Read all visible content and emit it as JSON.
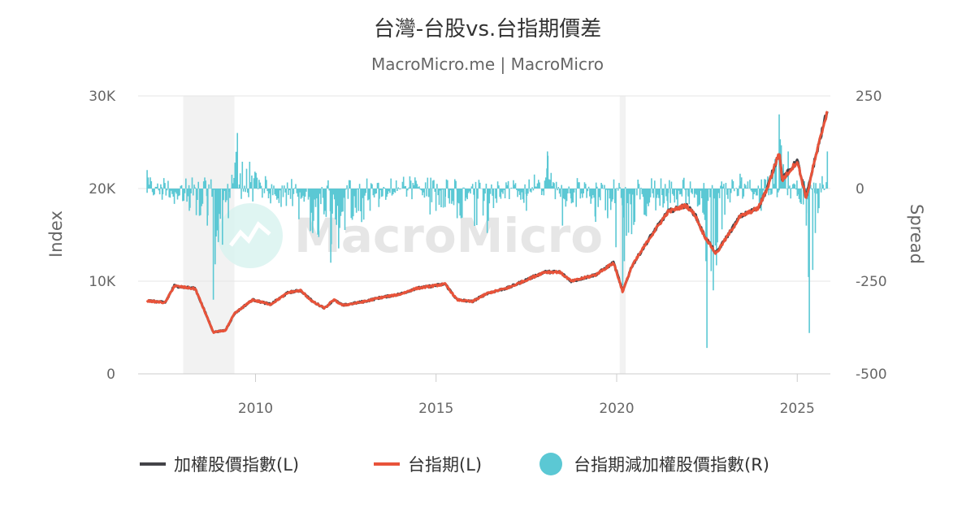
{
  "chart_data": {
    "type": "line",
    "title": "台灣-台股vs.台指期價差",
    "subtitle": "MacroMicro.me | MacroMicro",
    "watermark": "MacroMicro",
    "x_ticks": [
      "2010",
      "2015",
      "2020",
      "2025"
    ],
    "xlim": [
      "2006-10",
      "2025-12"
    ],
    "left_axis": {
      "label": "Index",
      "ticks": [
        "0",
        "10K",
        "20K",
        "30K"
      ],
      "tick_values": [
        0,
        10000,
        20000,
        30000
      ],
      "ylim": [
        0,
        30000
      ]
    },
    "right_axis": {
      "label": "Spread",
      "ticks": [
        "-500",
        "-250",
        "0",
        "250"
      ],
      "tick_values": [
        -500,
        -250,
        0,
        250
      ],
      "ylim": [
        -500,
        250
      ]
    },
    "recession_bands": [
      {
        "start": "2008-01",
        "end": "2009-06"
      },
      {
        "start": "2020-02",
        "end": "2020-04"
      }
    ],
    "grid": true,
    "legend_position": "bottom",
    "series": [
      {
        "name": "加權股價指數(L)",
        "axis": "left",
        "color": "#434348",
        "x": [
          "2007-01",
          "2007-07",
          "2007-10",
          "2008-05",
          "2008-11",
          "2009-03",
          "2009-06",
          "2009-12",
          "2010-06",
          "2010-12",
          "2011-04",
          "2011-08",
          "2011-12",
          "2012-03",
          "2012-06",
          "2013-01",
          "2013-06",
          "2014-01",
          "2014-06",
          "2015-04",
          "2015-08",
          "2016-01",
          "2016-06",
          "2017-01",
          "2017-06",
          "2018-01",
          "2018-06",
          "2018-10",
          "2019-06",
          "2019-12",
          "2020-03",
          "2020-06",
          "2020-12",
          "2021-06",
          "2021-12",
          "2022-03",
          "2022-06",
          "2022-10",
          "2023-06",
          "2023-12",
          "2024-03",
          "2024-07",
          "2024-08",
          "2025-01",
          "2025-04",
          "2025-06",
          "2025-11"
        ],
        "values": [
          7900,
          7700,
          9500,
          9200,
          4500,
          4700,
          6500,
          8000,
          7500,
          8800,
          9000,
          7800,
          7100,
          8000,
          7400,
          7800,
          8200,
          8600,
          9200,
          9700,
          8000,
          7800,
          8700,
          9300,
          10000,
          11000,
          11000,
          10000,
          10700,
          12000,
          8900,
          11600,
          14700,
          17500,
          18200,
          17200,
          15000,
          13000,
          17000,
          17900,
          20000,
          24000,
          21000,
          23000,
          19000,
          22000,
          28500
        ]
      },
      {
        "name": "台指期(L)",
        "axis": "left",
        "color": "#e8533a",
        "x": [
          "2007-01",
          "2007-07",
          "2007-10",
          "2008-05",
          "2008-11",
          "2009-03",
          "2009-06",
          "2009-12",
          "2010-06",
          "2010-12",
          "2011-04",
          "2011-08",
          "2011-12",
          "2012-03",
          "2012-06",
          "2013-01",
          "2013-06",
          "2014-01",
          "2014-06",
          "2015-04",
          "2015-08",
          "2016-01",
          "2016-06",
          "2017-01",
          "2017-06",
          "2018-01",
          "2018-06",
          "2018-10",
          "2019-06",
          "2019-12",
          "2020-03",
          "2020-06",
          "2020-12",
          "2021-06",
          "2021-12",
          "2022-03",
          "2022-06",
          "2022-10",
          "2023-06",
          "2023-12",
          "2024-03",
          "2024-07",
          "2024-08",
          "2025-01",
          "2025-04",
          "2025-06",
          "2025-11"
        ],
        "values": [
          7880,
          7680,
          9480,
          9180,
          4480,
          4680,
          6490,
          7990,
          7490,
          8790,
          8990,
          7780,
          7080,
          7990,
          7390,
          7790,
          8190,
          8590,
          9190,
          9690,
          7990,
          7790,
          8690,
          9290,
          9990,
          10990,
          10990,
          9990,
          10690,
          11990,
          8850,
          11580,
          14680,
          17470,
          18180,
          17170,
          14960,
          12950,
          16980,
          17880,
          19980,
          23950,
          20900,
          22950,
          18900,
          21950,
          28450
        ]
      },
      {
        "name": "台指期減加權股價指數(R)",
        "axis": "right",
        "color": "#5bc8d4",
        "x": [
          "2007-01",
          "2007-06",
          "2008-03",
          "2008-09",
          "2008-11",
          "2009-04",
          "2009-07",
          "2010-06",
          "2011-08",
          "2012-02",
          "2013-06",
          "2014-06",
          "2014-11",
          "2015-04",
          "2015-08",
          "2016-06",
          "2017-01",
          "2017-07",
          "2018-02",
          "2018-07",
          "2018-10",
          "2019-06",
          "2019-10",
          "2020-03",
          "2020-07",
          "2021-06",
          "2021-12",
          "2022-06",
          "2022-07",
          "2022-12",
          "2023-06",
          "2024-01",
          "2024-07",
          "2024-10",
          "2025-01",
          "2025-04",
          "2025-05",
          "2025-07",
          "2025-11"
        ],
        "values": [
          50,
          -30,
          -60,
          -100,
          -300,
          -80,
          150,
          -40,
          -120,
          -200,
          -50,
          30,
          -70,
          -50,
          -80,
          -120,
          20,
          -60,
          100,
          -100,
          -40,
          -90,
          -80,
          -260,
          -90,
          -60,
          -40,
          -70,
          -430,
          -110,
          40,
          -60,
          200,
          100,
          -20,
          -100,
          -390,
          -120,
          100
        ]
      }
    ]
  }
}
